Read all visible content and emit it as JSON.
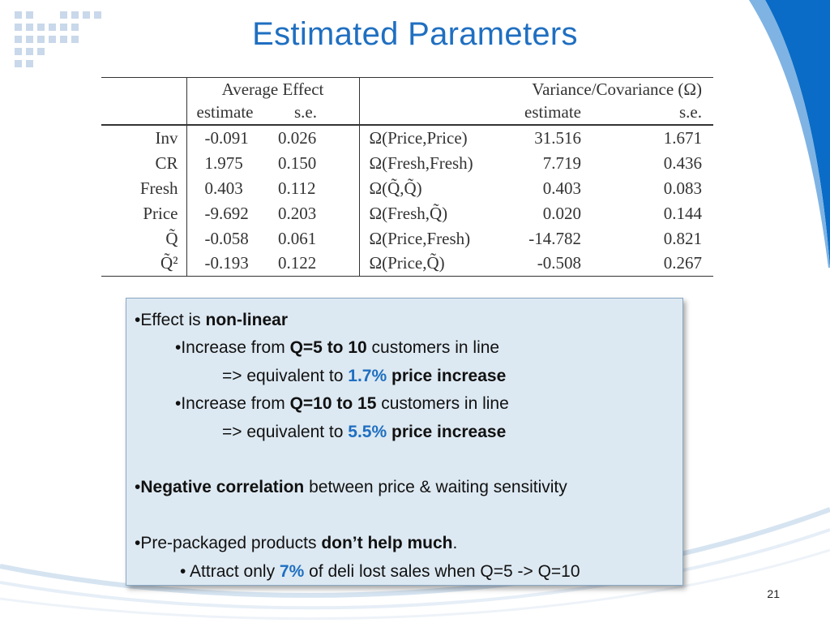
{
  "title": "Estimated Parameters",
  "colors": {
    "title": "#1f6fc1",
    "accent": "#1f6fc1",
    "box_bg": "#dde9f2",
    "swoosh": "#0a6cc6"
  },
  "table": {
    "header_avg": "Average Effect",
    "header_var": "Variance/Covariance (Ω)",
    "sub_est": "estimate",
    "sub_se": "s.e.",
    "sub_vest": "estimate",
    "sub_vse": "s.e.",
    "rows": [
      {
        "label": "Inv",
        "est": "-0.091",
        "se": "0.026",
        "vlabel": "Ω(Price,Price)",
        "vest": "31.516",
        "vse": "1.671"
      },
      {
        "label": "CR",
        "est": "1.975",
        "se": "0.150",
        "vlabel": "Ω(Fresh,Fresh)",
        "vest": "7.719",
        "vse": "0.436"
      },
      {
        "label": "Fresh",
        "est": "0.403",
        "se": "0.112",
        "vlabel": "Ω(Q̃,Q̃)",
        "vest": "0.403",
        "vse": "0.083"
      },
      {
        "label": "Price",
        "est": "-9.692",
        "se": "0.203",
        "vlabel": "Ω(Fresh,Q̃)",
        "vest": "0.020",
        "vse": "0.144"
      },
      {
        "label": "Q̃",
        "est": "-0.058",
        "se": "0.061",
        "vlabel": "Ω(Price,Fresh)",
        "vest": "-14.782",
        "vse": "0.821"
      },
      {
        "label": "Q̃²",
        "est": "-0.193",
        "se": "0.122",
        "vlabel": "Ω(Price,Q̃)",
        "vest": "-0.508",
        "vse": "0.267"
      }
    ]
  },
  "bullets": {
    "b1_pre": "•Effect is ",
    "b1_bold": "non-linear",
    "b2_pre": "•Increase from ",
    "b2_bold": "Q=5 to 10",
    "b2_post": " customers in line",
    "b3_pre": "=> equivalent to ",
    "b3_blue": "1.7%",
    "b3_bold": " price increase",
    "b4_pre": "•Increase from ",
    "b4_bold": "Q=10 to 15",
    "b4_post": " customers in line",
    "b5_pre": "=> equivalent to ",
    "b5_blue": "5.5%",
    "b5_bold": " price increase",
    "b6_pre": "•",
    "b6_bold": "Negative correlation",
    "b6_post": " between price & waiting sensitivity",
    "b7_pre": "•Pre-packaged products ",
    "b7_bold": "don’t help much",
    "b7_post": ".",
    "b8_pre": "• Attract only ",
    "b8_blue": "7%",
    "b8_post": " of deli lost sales when Q=5 -> Q=10"
  },
  "page_number": "21"
}
